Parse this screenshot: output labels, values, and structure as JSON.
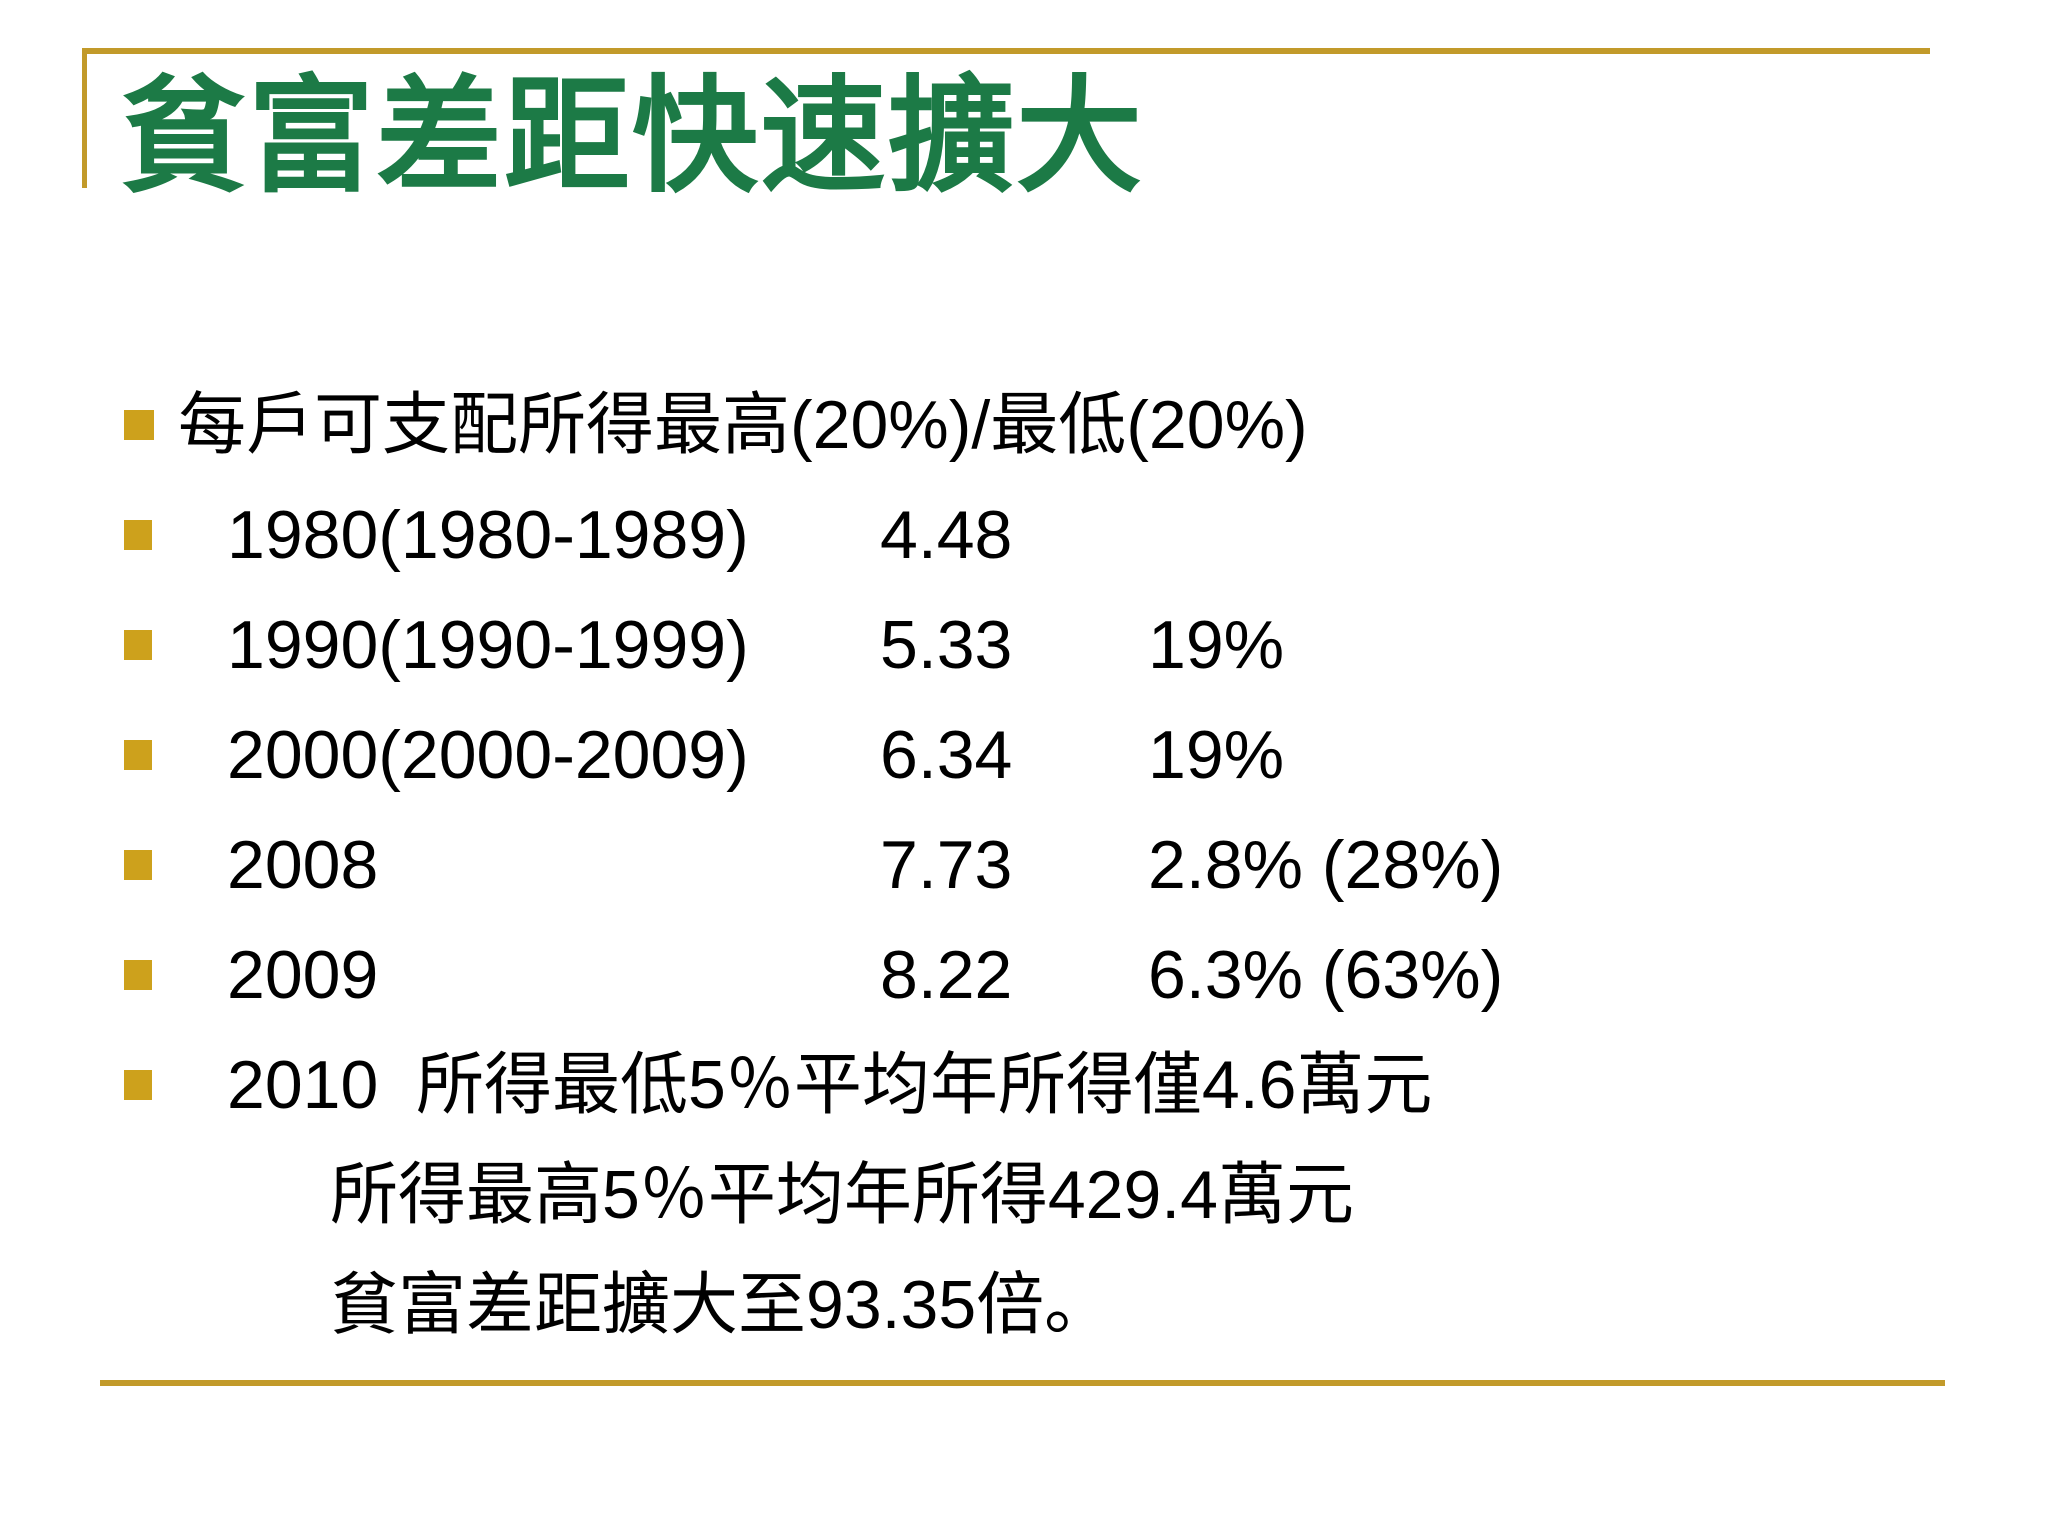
{
  "slide": {
    "title": "貧富差距快速擴大",
    "colors": {
      "title_green": "#1C7A46",
      "line_gold": "#C29A2A",
      "bullet_gold": "#CDA11C",
      "text_black": "#000000"
    },
    "rows": [
      {
        "label": "每戶可支配所得最高(20%)/最低(20%)",
        "value": "",
        "pct": ""
      },
      {
        "label": "1980(1980-1989)",
        "value": "4.48",
        "pct": ""
      },
      {
        "label": "1990(1990-1999)",
        "value": "5.33",
        "pct": "19%"
      },
      {
        "label": "2000(2000-2009)",
        "value": "6.34",
        "pct": "19%"
      },
      {
        "label": "2008",
        "value": "7.73",
        "pct": "2.8% (28%)"
      },
      {
        "label": "2009",
        "value": "8.22",
        "pct": "6.3% (63%)"
      },
      {
        "label": "2010  所得最低5％平均年所得僅4.6萬元",
        "value": "",
        "pct": ""
      },
      {
        "label": "所得最高5％平均年所得429.4萬元",
        "value": "",
        "pct": ""
      },
      {
        "label": "貧富差距擴大至93.35倍。",
        "value": "",
        "pct": ""
      }
    ]
  }
}
